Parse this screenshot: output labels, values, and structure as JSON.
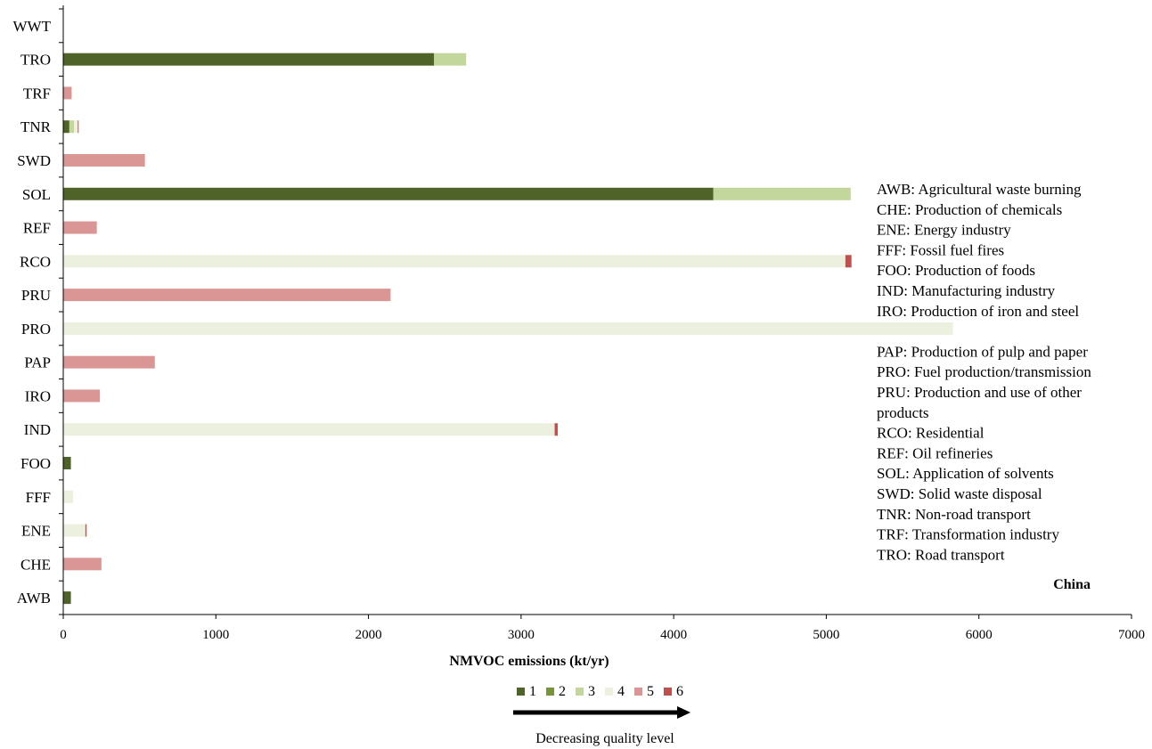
{
  "chart_data": {
    "type": "bar",
    "orientation": "horizontal",
    "stacked": true,
    "categories": [
      "WWT",
      "TRO",
      "TRF",
      "TNR",
      "SWD",
      "SOL",
      "REF",
      "RCO",
      "PRU",
      "PRO",
      "PAP",
      "IRO",
      "IND",
      "FOO",
      "FFF",
      "ENE",
      "CHE",
      "AWB"
    ],
    "series": [
      {
        "name": "1",
        "color": "#4f6228",
        "values": [
          0,
          2430,
          0,
          40,
          0,
          4260,
          0,
          0,
          0,
          0,
          0,
          0,
          0,
          50,
          0,
          0,
          0,
          50
        ]
      },
      {
        "name": "2",
        "color": "#77933c",
        "values": [
          0,
          0,
          0,
          0,
          0,
          0,
          0,
          0,
          0,
          0,
          0,
          0,
          0,
          0,
          0,
          0,
          0,
          0
        ]
      },
      {
        "name": "3",
        "color": "#c3d69b",
        "values": [
          0,
          210,
          0,
          30,
          0,
          900,
          0,
          0,
          0,
          0,
          0,
          0,
          0,
          0,
          0,
          0,
          0,
          0
        ]
      },
      {
        "name": "4",
        "color": "#ebf1de",
        "values": [
          0,
          0,
          0,
          25,
          0,
          0,
          0,
          5125,
          0,
          5830,
          0,
          0,
          3220,
          0,
          65,
          145,
          0,
          0
        ]
      },
      {
        "name": "5",
        "color": "#da9694",
        "values": [
          0,
          0,
          55,
          0,
          535,
          0,
          220,
          0,
          2145,
          0,
          600,
          240,
          0,
          0,
          0,
          0,
          250,
          0
        ]
      },
      {
        "name": "6",
        "color": "#c0504d",
        "values": [
          0,
          0,
          0,
          5,
          0,
          0,
          0,
          40,
          0,
          0,
          0,
          0,
          20,
          0,
          0,
          8,
          0,
          0
        ]
      }
    ],
    "xlabel": "NMVOC emissions (kt/yr)",
    "ylabel": "",
    "xlim": [
      0,
      7000
    ],
    "xticks": [
      0,
      1000,
      2000,
      3000,
      4000,
      5000,
      6000,
      7000
    ],
    "grid": false,
    "legend_placement": "bottom-center"
  },
  "legend_title": "",
  "arrow_caption": "Decreasing quality level",
  "region": "China",
  "abbreviations": [
    "AWB: Agricultural waste burning",
    "CHE: Production of chemicals",
    "ENE: Energy industry",
    "FFF: Fossil fuel fires",
    "FOO: Production of foods",
    "IND: Manufacturing industry",
    "IRO: Production of iron and steel",
    "",
    "PAP: Production of pulp and paper",
    "PRO: Fuel production/transmission",
    "PRU: Production and use of other",
    "products",
    "RCO: Residential",
    "REF: Oil refineries",
    "SOL: Application of solvents",
    "SWD: Solid waste disposal",
    "TNR: Non-road transport",
    "TRF: Transformation industry",
    "TRO: Road transport"
  ]
}
